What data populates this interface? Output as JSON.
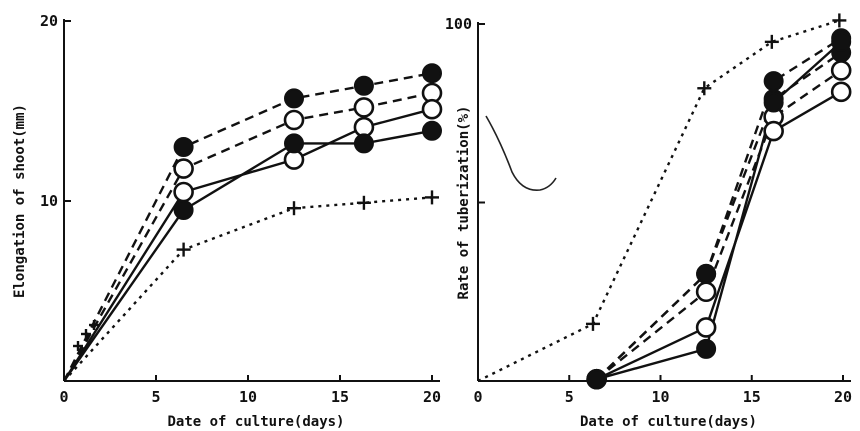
{
  "chart_data": [
    {
      "type": "line",
      "title": "",
      "xlabel": "Date of culture(days)",
      "ylabel": "Elongation of shoot(mm)",
      "xlim": [
        0,
        20
      ],
      "ylim": [
        0,
        20
      ],
      "xticks": [
        "0",
        "5",
        "10",
        "15",
        "20"
      ],
      "yticks": [
        "10",
        "20"
      ],
      "grid": false,
      "legend": "none",
      "series": [
        {
          "marker": "filled",
          "line": "dashed",
          "x": [
            0,
            6.5,
            12.5,
            16.3,
            20
          ],
          "y": [
            0,
            13.0,
            15.7,
            16.4,
            17.1
          ]
        },
        {
          "marker": "open",
          "line": "dashed",
          "x": [
            0,
            6.5,
            12.5,
            16.3,
            20
          ],
          "y": [
            0,
            11.8,
            14.5,
            15.2,
            16.0
          ]
        },
        {
          "marker": "open",
          "line": "solid",
          "x": [
            0,
            6.5,
            12.5,
            16.3,
            20
          ],
          "y": [
            0,
            10.5,
            12.3,
            14.1,
            15.1
          ]
        },
        {
          "marker": "filled",
          "line": "solid",
          "x": [
            0,
            6.5,
            12.5,
            16.3,
            20
          ],
          "y": [
            0,
            9.5,
            13.2,
            13.2,
            13.9
          ]
        },
        {
          "marker": "plus",
          "line": "dotted",
          "x": [
            0,
            6.5,
            12.5,
            16.3,
            20
          ],
          "y": [
            0,
            7.3,
            9.6,
            9.9,
            10.2
          ]
        }
      ]
    },
    {
      "type": "line",
      "title": "",
      "xlabel": "Date of culture(days)",
      "ylabel": "Rate of tuberization(%)",
      "xlim": [
        0,
        20
      ],
      "ylim": [
        0,
        100
      ],
      "xticks": [
        "0",
        "5",
        "10",
        "15",
        "20"
      ],
      "yticks": [
        "100"
      ],
      "grid": false,
      "legend": "none",
      "series": [
        {
          "marker": "plus",
          "line": "dotted",
          "x": [
            0,
            6.3,
            12.4,
            16.1,
            19.8
          ],
          "y": [
            0,
            16,
            82,
            95,
            101
          ]
        },
        {
          "marker": "filled",
          "line": "dashed",
          "x": [
            6.5,
            12.5,
            16.2,
            19.9
          ],
          "y": [
            0.5,
            30,
            84,
            96
          ]
        },
        {
          "marker": "open",
          "line": "dashed",
          "x": [
            6.5,
            12.5,
            16.2,
            19.9
          ],
          "y": [
            0.5,
            25,
            74,
            87
          ]
        },
        {
          "marker": "filled",
          "line": "dashed",
          "x": [
            6.5,
            12.5,
            16.2,
            19.9
          ],
          "y": [
            0.5,
            30,
            79,
            92
          ]
        },
        {
          "marker": "open",
          "line": "solid",
          "x": [
            6.5,
            12.5,
            16.2,
            19.9
          ],
          "y": [
            0.5,
            15,
            70,
            81
          ]
        },
        {
          "marker": "filled",
          "line": "solid",
          "x": [
            6.5,
            12.5,
            16.2,
            19.9
          ],
          "y": [
            0.5,
            9,
            78,
            95
          ]
        }
      ]
    }
  ]
}
